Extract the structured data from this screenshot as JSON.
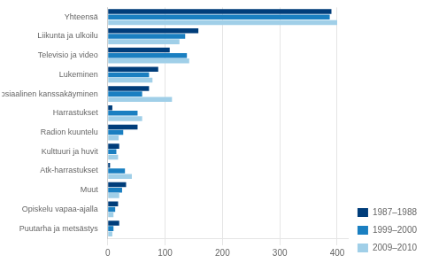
{
  "chart_data": {
    "type": "bar",
    "orientation": "horizontal",
    "categories": [
      "Yhteensä",
      "Liikunta ja ulkoilu",
      "Televisio ja video",
      "Lukeminen",
      "Sosiaalinen kanssakäyminen",
      "Harrastukset",
      "Radion kuuntelu",
      "Kulttuuri ja huvit",
      "Atk-harrastukset",
      "Muut",
      "Opiskelu vapaa-ajalla",
      "Puutarha ja metsästys"
    ],
    "series": [
      {
        "name": "1987–1988",
        "color": "#003d7a",
        "values": [
          390,
          158,
          108,
          88,
          72,
          8,
          52,
          20,
          4,
          32,
          18,
          20
        ]
      },
      {
        "name": "1999–2000",
        "color": "#1a7fc1",
        "values": [
          387,
          135,
          138,
          72,
          60,
          52,
          27,
          15,
          30,
          25,
          13,
          10
        ]
      },
      {
        "name": "2009–2010",
        "color": "#a0cfe8",
        "values": [
          400,
          125,
          142,
          78,
          112,
          60,
          19,
          18,
          42,
          20,
          10,
          8
        ]
      }
    ],
    "xlim": [
      0,
      420
    ],
    "xticks": [
      0,
      100,
      200,
      300,
      400
    ],
    "grid": true,
    "legend": "lower right"
  }
}
